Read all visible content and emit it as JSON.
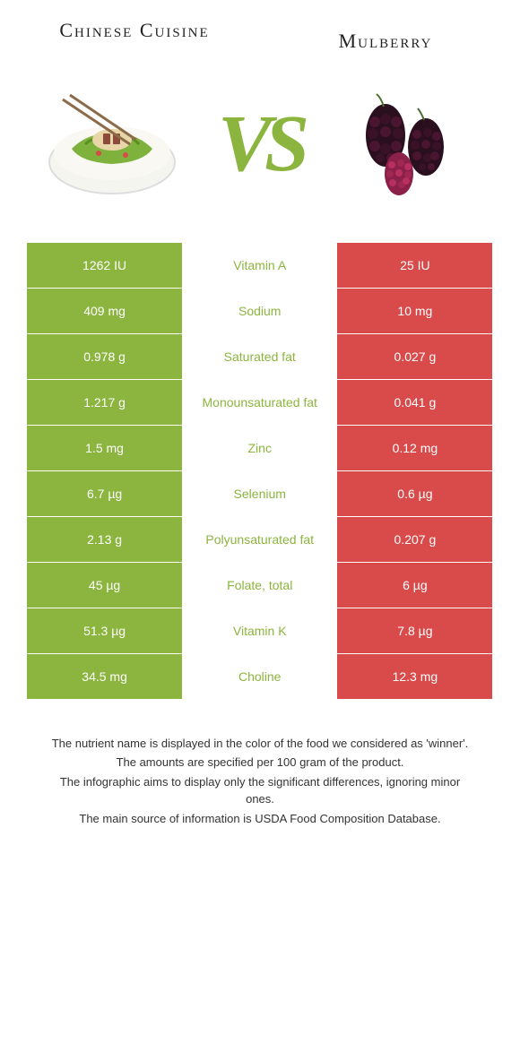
{
  "header": {
    "left_title": "Chinese Cuisine",
    "right_title": "Mulberry",
    "vs_label": "VS"
  },
  "colors": {
    "left_winner": "#8bb53e",
    "right_winner": "#d94a4a",
    "vs_color": "#8bb53e",
    "text_white": "#ffffff"
  },
  "rows": [
    {
      "left": "1262 IU",
      "label": "Vitamin A",
      "right": "25 IU",
      "winner": "left"
    },
    {
      "left": "409 mg",
      "label": "Sodium",
      "right": "10 mg",
      "winner": "left"
    },
    {
      "left": "0.978 g",
      "label": "Saturated fat",
      "right": "0.027 g",
      "winner": "left"
    },
    {
      "left": "1.217 g",
      "label": "Monounsaturated fat",
      "right": "0.041 g",
      "winner": "left"
    },
    {
      "left": "1.5 mg",
      "label": "Zinc",
      "right": "0.12 mg",
      "winner": "left"
    },
    {
      "left": "6.7 µg",
      "label": "Selenium",
      "right": "0.6 µg",
      "winner": "left"
    },
    {
      "left": "2.13 g",
      "label": "Polyunsaturated fat",
      "right": "0.207 g",
      "winner": "left"
    },
    {
      "left": "45 µg",
      "label": "Folate, total",
      "right": "6 µg",
      "winner": "left"
    },
    {
      "left": "51.3 µg",
      "label": "Vitamin K",
      "right": "7.8 µg",
      "winner": "left"
    },
    {
      "left": "34.5 mg",
      "label": "Choline",
      "right": "12.3 mg",
      "winner": "left"
    }
  ],
  "footer": {
    "line1": "The nutrient name is displayed in the color of the food we considered as 'winner'.",
    "line2": "The amounts are specified per 100 gram of the product.",
    "line3": "The infographic aims to display only the significant differences, ignoring minor ones.",
    "line4": "The main source of information is USDA Food Composition Database."
  }
}
